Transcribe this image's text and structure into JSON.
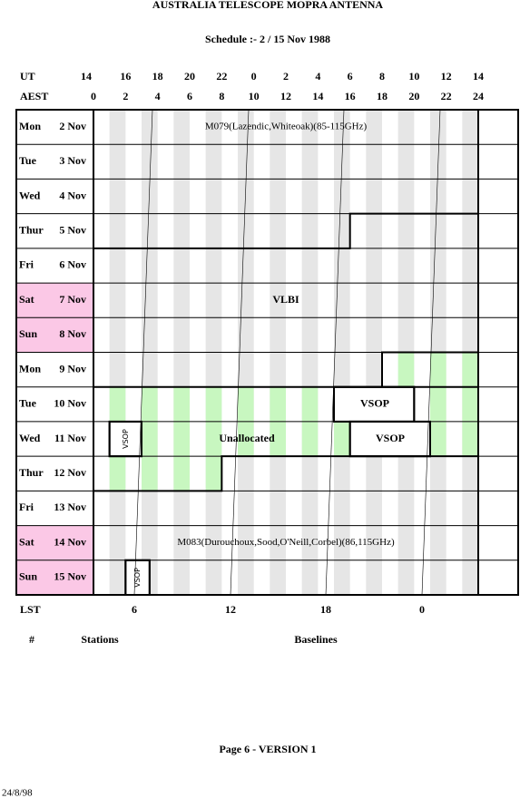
{
  "header": {
    "title": "AUSTRALIA TELESCOPE MOPRA ANTENNA",
    "subtitle": "Schedule :- 2 / 15 Nov 1988"
  },
  "ut_row": {
    "label": "UT",
    "hours": [
      14,
      16,
      18,
      20,
      22,
      0,
      2,
      4,
      6,
      8,
      10,
      12,
      14
    ]
  },
  "aest_row": {
    "label": "AEST",
    "hours": [
      0,
      2,
      4,
      6,
      8,
      10,
      12,
      14,
      16,
      18,
      20,
      22,
      24
    ]
  },
  "days": [
    {
      "day": "Mon",
      "date": "2 Nov"
    },
    {
      "day": "Tue",
      "date": "3 Nov"
    },
    {
      "day": "Wed",
      "date": "4 Nov"
    },
    {
      "day": "Thur",
      "date": "5 Nov"
    },
    {
      "day": "Fri",
      "date": "6 Nov"
    },
    {
      "day": "Sat",
      "date": "7 Nov",
      "weekend": true
    },
    {
      "day": "Sun",
      "date": "8 Nov",
      "weekend": true
    },
    {
      "day": "Mon",
      "date": "9 Nov"
    },
    {
      "day": "Tue",
      "date": "10 Nov"
    },
    {
      "day": "Wed",
      "date": "11 Nov"
    },
    {
      "day": "Thur",
      "date": "12 Nov"
    },
    {
      "day": "Fri",
      "date": "13 Nov"
    },
    {
      "day": "Sat",
      "date": "14 Nov",
      "weekend": true
    },
    {
      "day": "Sun",
      "date": "15 Nov",
      "weekend": true
    }
  ],
  "blocks": [
    {
      "label": "M079(Lazendic,Whiteoak)(85-115GHz)"
    },
    {
      "label": "VLBI"
    },
    {
      "label": "VSOP"
    },
    {
      "label": "Unallocated"
    },
    {
      "label": "VSOP"
    },
    {
      "label": "VSOP"
    },
    {
      "label": "M083(Durouchoux,Sood,O'Neill,Corbel)(86,115GHz)"
    },
    {
      "label": "VSOP"
    }
  ],
  "lst_row": {
    "label": "LST",
    "hours": [
      6,
      12,
      18,
      0
    ]
  },
  "columns": {
    "number": "#",
    "stations": "Stations",
    "baselines": "Baselines"
  },
  "footer": {
    "page": "Page 6 - VERSION 1",
    "date": "24/8/98"
  }
}
